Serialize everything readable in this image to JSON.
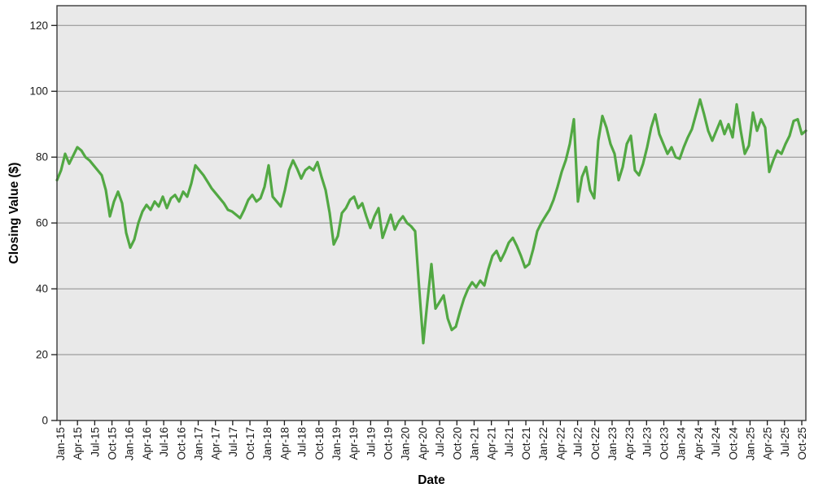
{
  "chart_data": {
    "type": "line",
    "title": "",
    "xlabel": "Date",
    "ylabel": "Closing Value ($)",
    "ylim": [
      0,
      126
    ],
    "yticks": [
      0,
      20,
      40,
      60,
      80,
      100,
      120
    ],
    "grid": "horizontal",
    "legend_position": "none",
    "plot_background": "#e9e9e9",
    "gridline_color": "#8c8c8c",
    "border_color": "#3a3a3a",
    "tick_color": "#1a1a1a",
    "x_tick_labels": [
      "Jan-15",
      "Apr-15",
      "Jul-15",
      "Oct-15",
      "Jan-16",
      "Apr-16",
      "Jul-16",
      "Oct-16",
      "Jan-17",
      "Apr-17",
      "Jul-17",
      "Oct-17",
      "Jan-18",
      "Apr-18",
      "Jul-18",
      "Oct-18",
      "Jan-19",
      "Apr-19",
      "Jul-19",
      "Oct-19",
      "Jan-20",
      "Apr-20",
      "Jul-20",
      "Oct-20",
      "Jan-21",
      "Apr-21",
      "Jul-21",
      "Oct-21",
      "Jan-22",
      "Apr-22",
      "Jul-22",
      "Oct-22",
      "Jan-23",
      "Apr-23",
      "Jul-23",
      "Oct-23",
      "Jan-24",
      "Apr-24",
      "Jul-24",
      "Oct-24",
      "Jan-25",
      "Apr-25",
      "Jul-25",
      "Oct-25"
    ],
    "series": [
      {
        "name": "Closing Value",
        "color": "#52a843",
        "x_range": "Jan-2015 to Oct-2025, evenly sampled",
        "values": [
          73,
          76,
          81,
          78,
          80.5,
          83,
          82,
          80,
          79,
          77.5,
          76,
          74.5,
          70,
          62,
          66.5,
          69.5,
          66,
          57,
          52.5,
          55,
          60,
          63.5,
          65.5,
          64,
          66.5,
          65,
          68,
          64.5,
          67.5,
          68.5,
          66.5,
          69.5,
          68,
          72,
          77.5,
          76,
          74.5,
          72.5,
          70.5,
          69,
          67.5,
          66,
          64,
          63.5,
          62.5,
          61.5,
          64,
          67,
          68.5,
          66.5,
          67.5,
          71,
          77.5,
          68,
          66.5,
          65,
          70,
          76,
          79,
          76.5,
          73.5,
          76,
          77,
          76,
          78.5,
          74,
          70,
          63,
          53.5,
          56,
          63,
          64.5,
          67,
          68,
          64.5,
          66,
          62,
          58.5,
          62,
          64.5,
          55.5,
          59,
          62.5,
          58,
          60.5,
          62,
          60,
          59,
          57.5,
          40,
          23.5,
          36,
          47.5,
          34,
          36,
          38,
          31,
          27.5,
          28.5,
          33,
          37,
          40,
          42,
          40.5,
          42.5,
          41,
          46,
          50,
          51.5,
          48.5,
          51,
          54,
          55.5,
          53,
          50,
          46.5,
          47.5,
          52,
          57.5,
          60,
          62,
          64,
          67,
          71,
          75.5,
          79,
          84,
          91.5,
          66.5,
          74,
          77,
          70,
          67.5,
          85,
          92.5,
          89,
          84,
          81,
          73,
          77,
          84,
          86.5,
          76,
          74.5,
          78,
          83,
          89,
          93,
          87,
          84,
          81,
          83,
          80,
          79.5,
          83,
          86,
          88.5,
          93,
          97.5,
          93,
          88,
          85,
          88,
          91,
          87,
          90,
          86,
          96,
          88,
          81,
          83.5,
          93.5,
          88,
          91.5,
          89,
          75.5,
          79,
          82,
          81,
          84,
          86.5,
          91,
          91.5,
          87,
          88
        ]
      }
    ]
  }
}
